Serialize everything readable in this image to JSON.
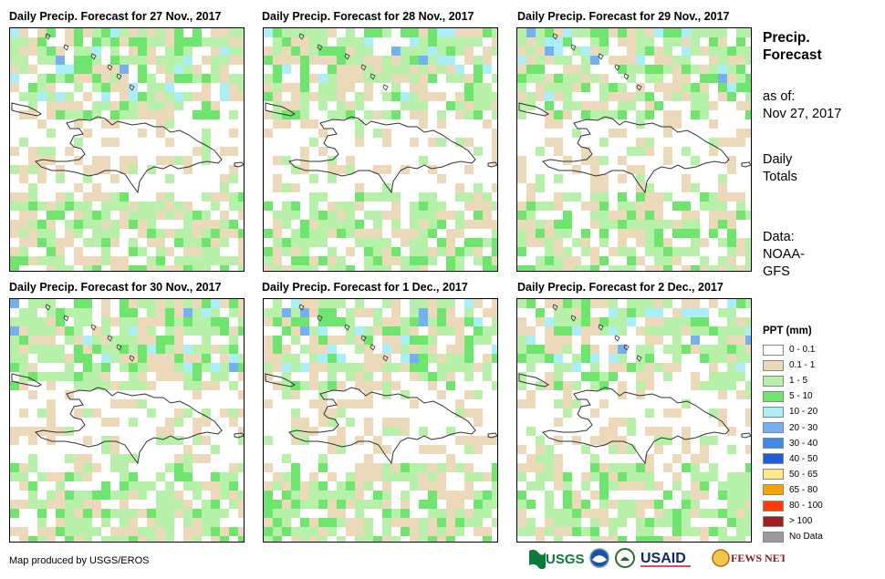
{
  "panels": [
    {
      "title": "Daily Precip. Forecast for 27 Nov., 2017",
      "seed": 11
    },
    {
      "title": "Daily Precip. Forecast for 28 Nov., 2017",
      "seed": 23
    },
    {
      "title": "Daily Precip. Forecast for 29 Nov., 2017",
      "seed": 37
    },
    {
      "title": "Daily Precip. Forecast for 30 Nov., 2017",
      "seed": 41
    },
    {
      "title": "Daily Precip. Forecast for 1 Dec., 2017",
      "seed": 53
    },
    {
      "title": "Daily Precip. Forecast for 2 Dec., 2017",
      "seed": 67
    }
  ],
  "side": {
    "title_line1": "Precip.",
    "title_line2": "Forecast",
    "asof_label": "as of:",
    "asof_date": "Nov 27, 2017",
    "daily_line1": "Daily",
    "daily_line2": "Totals",
    "data_line1": "Data:",
    "data_line2": "NOAA-",
    "data_line3": "GFS"
  },
  "legend": {
    "title": "PPT (mm)",
    "items": [
      {
        "label": "0 - 0.1",
        "color": "#ffffff"
      },
      {
        "label": "0.1 - 1",
        "color": "#ecd9b9"
      },
      {
        "label": "1 - 5",
        "color": "#b7f0a9"
      },
      {
        "label": "5 - 10",
        "color": "#6ee66e"
      },
      {
        "label": "10 - 20",
        "color": "#aaeefa"
      },
      {
        "label": "20 - 30",
        "color": "#73b1f0"
      },
      {
        "label": "30 - 40",
        "color": "#3a8ce6"
      },
      {
        "label": "40 - 50",
        "color": "#1e5fd7"
      },
      {
        "label": "50 - 65",
        "color": "#ffe98a"
      },
      {
        "label": "65 - 80",
        "color": "#f7a500"
      },
      {
        "label": "80 - 100",
        "color": "#ff3c00"
      },
      {
        "label": "> 100",
        "color": "#a01e1e"
      },
      {
        "label": "No Data",
        "color": "#9b9b9b"
      }
    ]
  },
  "credit": "Map produced by USGS/EROS",
  "logos": [
    "USGS",
    "NOAA",
    "USDA",
    "USAID",
    "FEWS NET"
  ]
}
